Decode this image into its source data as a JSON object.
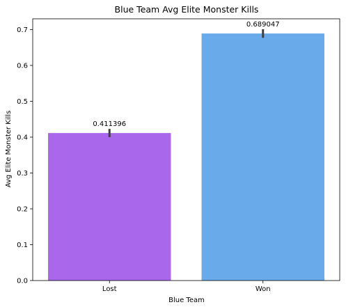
{
  "chart_data": {
    "type": "bar",
    "title": "Blue Team Avg Elite Monster Kills",
    "xlabel": "Blue Team",
    "ylabel": "Avg Elite Monster Kills",
    "categories": [
      "Lost",
      "Won"
    ],
    "values": [
      0.411396,
      0.689047
    ],
    "data_labels": [
      "0.411396",
      "0.689047"
    ],
    "error_bars": [
      [
        0.4,
        0.423
      ],
      [
        0.677,
        0.701
      ]
    ],
    "colors": [
      "#a968ec",
      "#69aaea"
    ],
    "ylim": [
      0,
      0.73
    ],
    "yticks": [
      0.0,
      0.1,
      0.2,
      0.3,
      0.4,
      0.5,
      0.6,
      0.7
    ],
    "ytick_labels": [
      "0.0",
      "0.1",
      "0.2",
      "0.3",
      "0.4",
      "0.5",
      "0.6",
      "0.7"
    ],
    "grid": false,
    "legend": "none"
  }
}
